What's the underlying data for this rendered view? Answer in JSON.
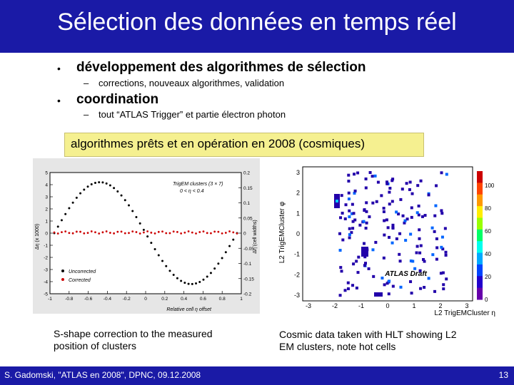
{
  "title": "Sélection des données en temps réel",
  "bullets": [
    {
      "text": "développement des algorithmes de sélection",
      "sub": "corrections, nouveaux algorithmes, validation"
    },
    {
      "text": "coordination",
      "sub": "tout “ATLAS Trigger” et partie électron photon"
    }
  ],
  "bullet_symbol": "•",
  "sub_symbol": "–",
  "callout": "algorithmes prêts et en opération en 2008 (cosmiques)",
  "left_plot": {
    "legend_title": "TrigEM clusters (3 × 7)",
    "legend_sub": "0 < η < 0.4",
    "ylabel": "Δη (x 1000)",
    "y2label": "Δη (cell widths)",
    "xlabel": "Relative cell η offset",
    "series": [
      "Uncorrected",
      "Corrected"
    ],
    "y_ticks": [
      "-5",
      "-4",
      "-3",
      "-2",
      "-1",
      "0",
      "1",
      "2",
      "3",
      "4",
      "5"
    ],
    "y2_ticks": [
      "-0.2",
      "-0.15",
      "-0.1",
      "-0.05",
      "0",
      "0.05",
      "0.1",
      "0.15",
      "0.2"
    ],
    "x_ticks": [
      "-1",
      "-0.8",
      "-0.6",
      "-0.4",
      "-0.2",
      "0",
      "0.2",
      "0.4",
      "0.6",
      "0.8",
      "1"
    ]
  },
  "right_plot": {
    "ylabel": "L2 TrigEMCluster φ",
    "xlabel": "L2 TrigEMCluster η",
    "watermark": "ATLAS Draft",
    "y_ticks": [
      "3",
      "2",
      "1",
      "0",
      "-1",
      "-2",
      "-3"
    ],
    "x_ticks": [
      "-3",
      "-2",
      "-1",
      "0",
      "1",
      "2",
      "3"
    ],
    "scale_ticks": [
      "100",
      "80",
      "60",
      "40",
      "20",
      "0"
    ]
  },
  "captions": {
    "left": [
      "S-shape correction to the measured",
      "position of clusters"
    ],
    "right": [
      "Cosmic data taken with HLT showing L2",
      "EM clusters, note hot cells"
    ]
  },
  "footer": {
    "left": "S. Gadomski, \"ATLAS en 2008\", DPNC, 09.12.2008",
    "page": "13"
  },
  "colors": {
    "bar": "#1a1aa6",
    "callout": "#f5f090",
    "uncorrected": "#000000",
    "corrected": "#cc0000"
  }
}
